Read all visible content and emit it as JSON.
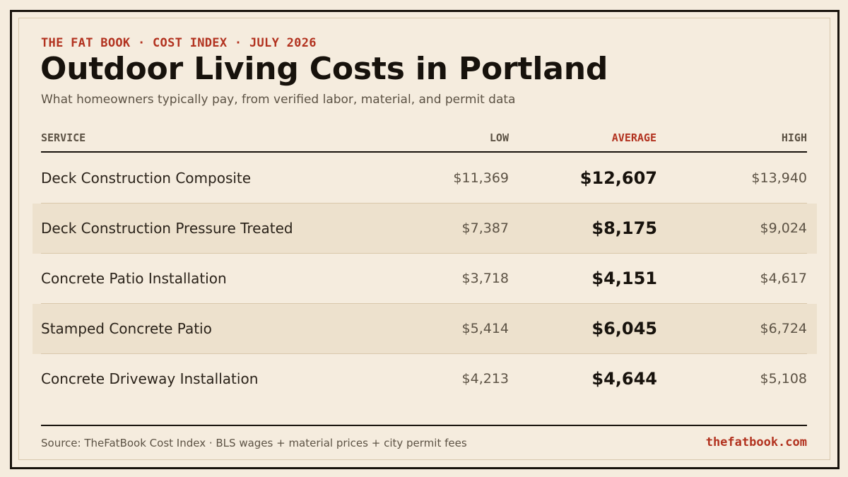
{
  "header": {
    "kicker": "THE FAT BOOK · COST INDEX · JULY 2026",
    "title": "Outdoor Living Costs in Portland",
    "subtitle": "What homeowners typically pay, from verified labor, material, and permit data"
  },
  "table": {
    "columns": {
      "service": "SERVICE",
      "low": "LOW",
      "average": "AVERAGE",
      "high": "HIGH"
    },
    "rows": [
      {
        "service": "Deck Construction Composite",
        "low": "$11,369",
        "average": "$12,607",
        "high": "$13,940"
      },
      {
        "service": "Deck Construction Pressure Treated",
        "low": "$7,387",
        "average": "$8,175",
        "high": "$9,024"
      },
      {
        "service": "Concrete Patio Installation",
        "low": "$3,718",
        "average": "$4,151",
        "high": "$4,617"
      },
      {
        "service": "Stamped Concrete Patio",
        "low": "$5,414",
        "average": "$6,045",
        "high": "$6,724"
      },
      {
        "service": "Concrete Driveway Installation",
        "low": "$4,213",
        "average": "$4,644",
        "high": "$5,108"
      }
    ]
  },
  "footer": {
    "source": "Source: TheFatBook Cost Index · BLS wages + material prices + city permit fees",
    "site": "thefatbook.com"
  },
  "colors": {
    "background": "#f5ecde",
    "accent": "#b2321f",
    "ink": "#17120c",
    "muted": "#5c5244",
    "alt_row": "#ede1cd"
  }
}
